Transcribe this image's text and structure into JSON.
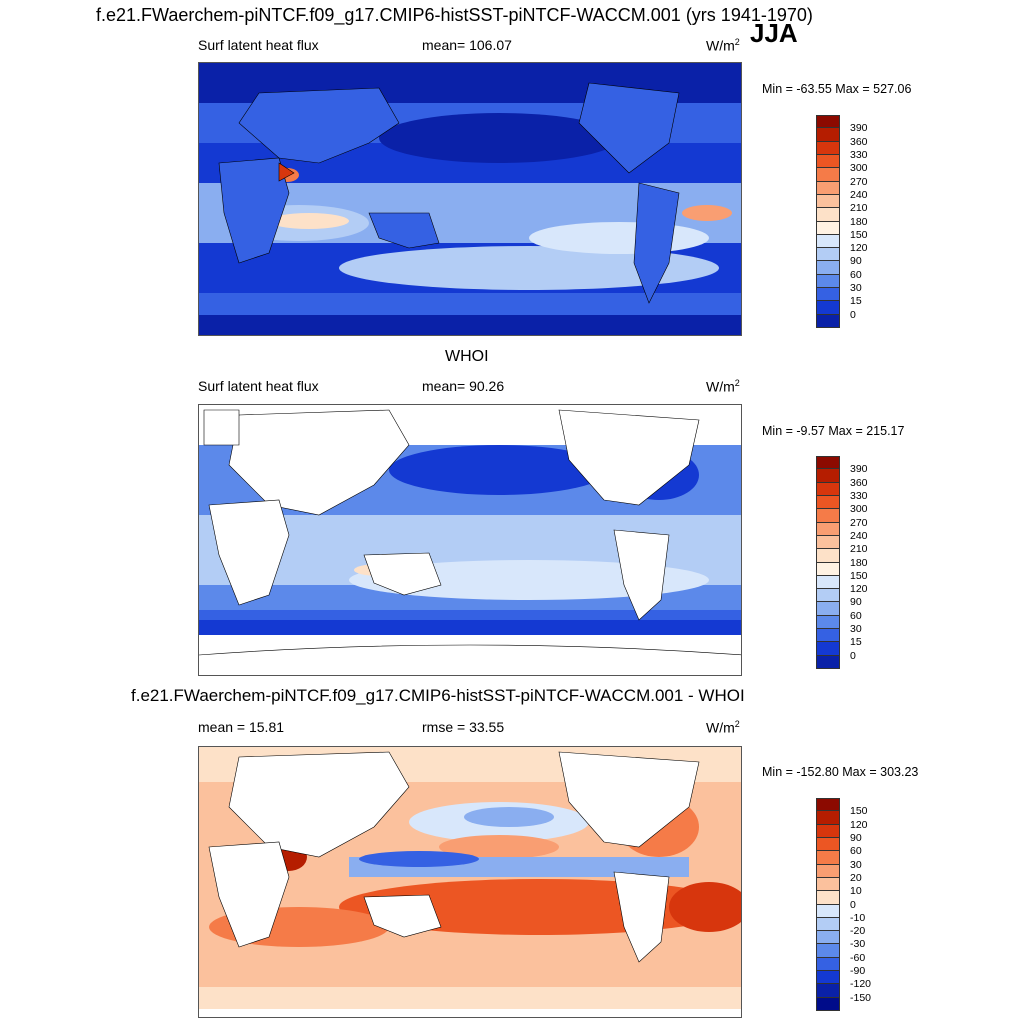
{
  "header": {
    "title": "f.e21.FWaerchem-piNTCF.f09_g17.CMIP6-histSST-piNTCF-WACCM.001 (yrs 1941-1970)",
    "season": "JJA"
  },
  "panels": [
    {
      "id": "model",
      "title": "",
      "left_label": "Surf latent heat flux",
      "center_label": "mean= 106.07",
      "units": "W/m",
      "units_exp": "2",
      "minmax": "Min = -63.55 Max = 527.06",
      "colorbar": "abs"
    },
    {
      "id": "obs",
      "title": "WHOI",
      "left_label": "Surf latent heat flux",
      "center_label": "mean=  90.26",
      "units": "W/m",
      "units_exp": "2",
      "minmax": "Min =  -9.57 Max = 215.17",
      "colorbar": "abs"
    },
    {
      "id": "diff",
      "title": "f.e21.FWaerchem-piNTCF.f09_g17.CMIP6-histSST-piNTCF-WACCM.001 - WHOI",
      "left_label": "mean =  15.81",
      "center_label": "rmse =  33.55",
      "units": "W/m",
      "units_exp": "2",
      "minmax": "Min = -152.80 Max = 303.23",
      "colorbar": "diff"
    }
  ],
  "colorbars": {
    "abs": {
      "labels": [
        "390",
        "360",
        "330",
        "300",
        "270",
        "240",
        "210",
        "180",
        "150",
        "120",
        "90",
        "60",
        "30",
        "15",
        "0"
      ],
      "colors": [
        "#8c0a00",
        "#b51d00",
        "#d7360d",
        "#ec5623",
        "#f57b48",
        "#f99e72",
        "#fbc19d",
        "#fde1c8",
        "#fff2e3",
        "#d8e7fb",
        "#b3cdf5",
        "#8aaef0",
        "#5c89ea",
        "#3561e3",
        "#1439d2",
        "#0a21a8"
      ]
    },
    "diff": {
      "labels": [
        "150",
        "120",
        "90",
        "60",
        "30",
        "20",
        "10",
        "0",
        "-10",
        "-20",
        "-30",
        "-60",
        "-90",
        "-120",
        "-150"
      ],
      "colors": [
        "#8c0a00",
        "#b51d00",
        "#d7360d",
        "#ec5623",
        "#f57b48",
        "#f99e72",
        "#fbc19d",
        "#fde1c8",
        "#d8e7fb",
        "#b3cdf5",
        "#8aaef0",
        "#5c89ea",
        "#3561e3",
        "#1439d2",
        "#0a21a8",
        "#000c8a"
      ]
    }
  }
}
